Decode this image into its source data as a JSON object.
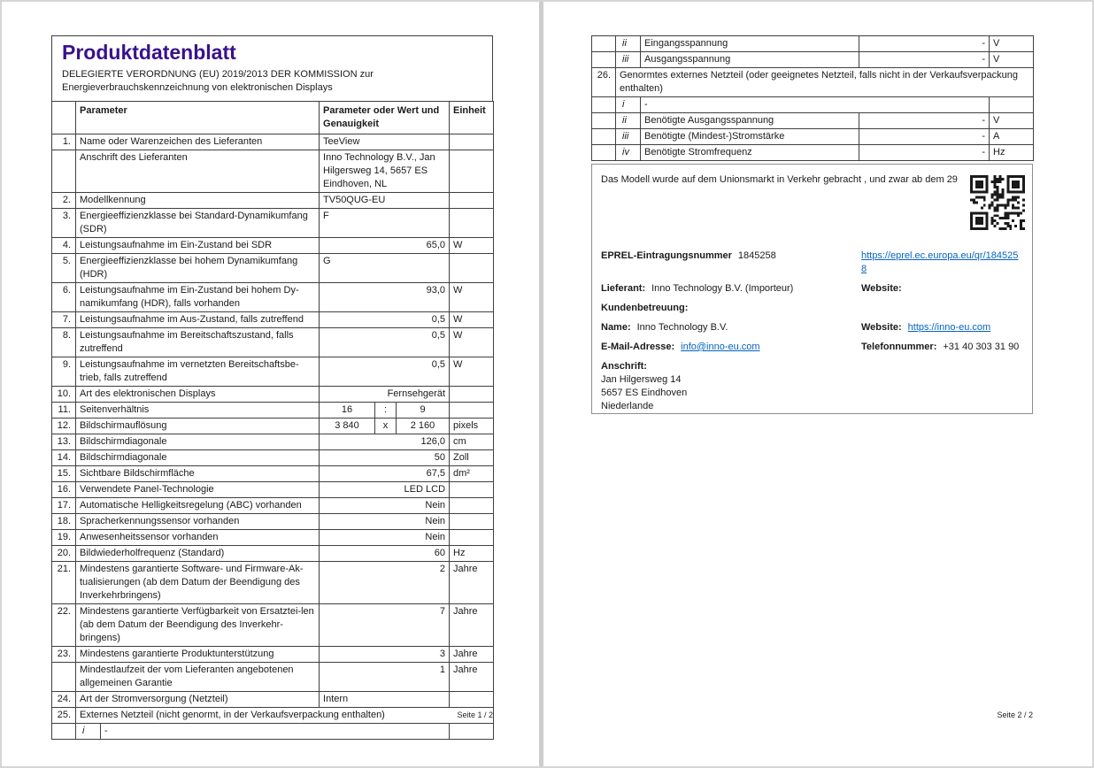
{
  "colors": {
    "title": "#39128c",
    "link": "#0563c1",
    "table_border": "#3f3f3f"
  },
  "icons": {
    "qr": "qr-code"
  },
  "page1": {
    "title": "Produktdatenblatt",
    "subtitle_line1": "DELEGIERTE VERORDNUNG (EU) 2019/2013 DER KOMMISSION zur",
    "subtitle_line2": "Energieverbrauchskennzeichnung von elektronischen Displays",
    "table": {
      "headers": {
        "parameter": "Parameter",
        "value": "Parameter oder Wert und Genauigkeit",
        "unit": "Einheit"
      },
      "rows": [
        {
          "type": "normal",
          "num": "1.",
          "label": "Name oder Warenzeichen des Lieferanten",
          "value": "TeeView",
          "align": "left",
          "unit": ""
        },
        {
          "type": "normal",
          "num": "",
          "label": "Anschrift des Lieferanten",
          "value": "Inno Technology B.V., Jan Hilgersweg 14, 5657 ES Eindhoven, NL",
          "align": "left",
          "unit": ""
        },
        {
          "type": "normal",
          "num": "2.",
          "label": "Modellkennung",
          "value": "TV50QUG-EU",
          "align": "left",
          "unit": ""
        },
        {
          "type": "normal",
          "num": "3.",
          "label": "Energieeffizienzklasse bei Standard-Dynamikumfang (SDR)",
          "value": "F",
          "align": "left",
          "unit": ""
        },
        {
          "type": "normal",
          "num": "4.",
          "label": "Leistungsaufnahme im Ein-Zustand bei SDR",
          "value": "65,0",
          "align": "right",
          "unit": "W"
        },
        {
          "type": "normal",
          "num": "5.",
          "label": "Energieeffizienzklasse bei hohem Dynamikumfang (HDR)",
          "value": "G",
          "align": "left",
          "unit": ""
        },
        {
          "type": "normal",
          "num": "6.",
          "label": "Leistungsaufnahme im Ein-Zustand bei hohem Dy-namikumfang (HDR), falls vorhanden",
          "value": "93,0",
          "align": "right",
          "unit": "W"
        },
        {
          "type": "normal",
          "num": "7.",
          "label": "Leistungsaufnahme im Aus-Zustand, falls zutreffend",
          "value": "0,5",
          "align": "right",
          "unit": "W"
        },
        {
          "type": "normal",
          "num": "8.",
          "label": "Leistungsaufnahme im Bereitschaftszustand, falls zutreffend",
          "value": "0,5",
          "align": "right",
          "unit": "W"
        },
        {
          "type": "normal",
          "num": "9.",
          "label": "Leistungsaufnahme im vernetzten Bereitschaftsbe-trieb, falls zutreffend",
          "value": "0,5",
          "align": "right",
          "unit": "W"
        },
        {
          "type": "normal",
          "num": "10.",
          "label": "Art des elektronischen Displays",
          "value": "Fernsehgerät",
          "align": "right",
          "unit": ""
        },
        {
          "type": "split",
          "num": "11.",
          "label": "Seitenverhältnis",
          "cells": [
            "16",
            ":",
            "9"
          ],
          "unit": ""
        },
        {
          "type": "split",
          "num": "12.",
          "label": "Bildschirmauflösung",
          "cells": [
            "3 840",
            "x",
            "2 160"
          ],
          "unit": "pixels"
        },
        {
          "type": "normal",
          "num": "13.",
          "label": "Bildschirmdiagonale",
          "value": "126,0",
          "align": "right",
          "unit": "cm"
        },
        {
          "type": "normal",
          "num": "14.",
          "label": "Bildschirmdiagonale",
          "value": "50",
          "align": "right",
          "unit": "Zoll"
        },
        {
          "type": "normal",
          "num": "15.",
          "label": "Sichtbare Bildschirmfläche",
          "value": "67,5",
          "align": "right",
          "unit": "dm²"
        },
        {
          "type": "normal",
          "num": "16.",
          "label": "Verwendete Panel-Technologie",
          "value": "LED LCD",
          "align": "right",
          "unit": ""
        },
        {
          "type": "normal",
          "num": "17.",
          "label": "Automatische Helligkeitsregelung (ABC) vorhanden",
          "value": "Nein",
          "align": "right",
          "unit": ""
        },
        {
          "type": "normal",
          "num": "18.",
          "label": "Spracherkennungssensor vorhanden",
          "value": "Nein",
          "align": "right",
          "unit": ""
        },
        {
          "type": "normal",
          "num": "19.",
          "label": "Anwesenheitssensor vorhanden",
          "value": "Nein",
          "align": "right",
          "unit": ""
        },
        {
          "type": "normal",
          "num": "20.",
          "label": "Bildwiederholfrequenz (Standard)",
          "value": "60",
          "align": "right",
          "unit": "Hz"
        },
        {
          "type": "normal",
          "num": "21.",
          "label": "Mindestens garantierte Software- und Firmware-Ak-tualisierungen (ab dem Datum der Beendigung des Inverkehrbringens)",
          "value": "2",
          "align": "right",
          "unit": "Jahre"
        },
        {
          "type": "normal",
          "num": "22.",
          "label": "Mindestens garantierte Verfügbarkeit von Ersatztei-len (ab dem Datum der Beendigung des Inverkehr-bringens)",
          "value": "7",
          "align": "right",
          "unit": "Jahre"
        },
        {
          "type": "normal",
          "num": "23.",
          "label": "Mindestens garantierte Produktunterstützung",
          "value": "3",
          "align": "right",
          "unit": "Jahre"
        },
        {
          "type": "normal",
          "num": "",
          "label": "Mindestlaufzeit der vom Lieferanten angebotenen allgemeinen Garantie",
          "value": "1",
          "align": "right",
          "unit": "Jahre"
        },
        {
          "type": "normal",
          "num": "24.",
          "label": "Art der Stromversorgung (Netzteil)",
          "value": "Intern",
          "align": "left",
          "unit": ""
        },
        {
          "type": "span",
          "num": "25.",
          "label": "Externes Netzteil (nicht genormt, in der Verkaufsverpackung enthalten)"
        },
        {
          "type": "romanDash",
          "roman": "i",
          "dash": "-"
        }
      ]
    },
    "footer": "Seite 1 / 2"
  },
  "page2": {
    "table": {
      "rows": [
        {
          "type": "roman",
          "num": "",
          "roman": "ii",
          "label": "Eingangsspannung",
          "value": "-",
          "unit": "V"
        },
        {
          "type": "roman",
          "num": "",
          "roman": "iii",
          "label": "Ausgangsspannung",
          "value": "-",
          "unit": "V"
        },
        {
          "type": "span26",
          "num": "26.",
          "label": "Genormtes externes Netzteil (oder geeignetes Netzteil, falls nicht in der Verkaufsverpackung enthalten)"
        },
        {
          "type": "romanDash",
          "roman": "i",
          "dash": "-"
        },
        {
          "type": "roman",
          "num": "",
          "roman": "ii",
          "label": "Benötigte Ausgangsspannung",
          "value": "-",
          "unit": "V"
        },
        {
          "type": "roman",
          "num": "",
          "roman": "iii",
          "label": "Benötigte (Mindest-)Stromstärke",
          "value": "-",
          "unit": "A"
        },
        {
          "type": "roman",
          "num": "",
          "roman": "iv",
          "label": "Benötigte Stromfrequenz",
          "value": "-",
          "unit": "Hz"
        }
      ]
    },
    "info_box": {
      "intro": "Das Modell wurde auf dem Unionsmarkt in Verkehr gebracht , und zwar ab dem 29",
      "rows": [
        {
          "name": "eprel-row",
          "eprel": true,
          "left": {
            "label": "EPREL-Eintragungsnummer",
            "text": "1845258"
          },
          "right": {
            "link": "https://eprel.ec.europa.eu/qr/1845258",
            "wrap": true
          }
        },
        {
          "name": "supplier-row",
          "left": {
            "label": "Lieferant:",
            "text": "Inno Technology B.V. (Importeur)"
          },
          "right": {
            "label": "Website:"
          }
        },
        {
          "name": "customer-service-row",
          "left": {
            "label": "Kundenbetreuung:"
          }
        },
        {
          "name": "contact-name-row",
          "left": {
            "label": "Name:",
            "text": "Inno Technology B.V."
          },
          "right": {
            "label": "Website:",
            "link": "https://inno-eu.com"
          }
        },
        {
          "name": "email-row",
          "left": {
            "label": "E-Mail-Adresse:",
            "link": "info@inno-eu.com"
          },
          "right": {
            "label": "Telefonnummer:",
            "text": "+31 40 303 31 90"
          }
        },
        {
          "name": "address-row",
          "left": {
            "label": "Anschrift:",
            "lines": [
              "Jan Hilgersweg 14",
              "5657 ES Eindhoven",
              "Niederlande"
            ]
          }
        }
      ]
    },
    "footer": "Seite 2 / 2"
  }
}
